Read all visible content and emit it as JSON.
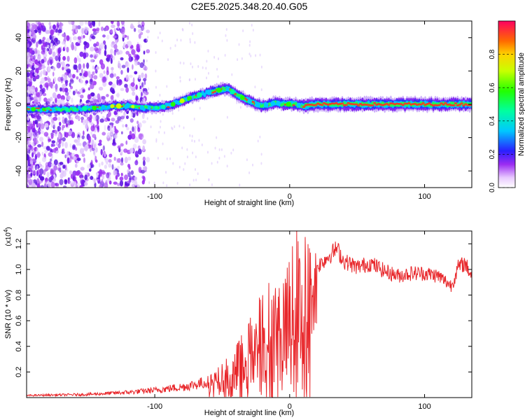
{
  "title": "C2E5.2025.348.20.40.G05",
  "colors": {
    "snr_line": "#e8262a",
    "background": "#ffffff",
    "axis": "#000000"
  },
  "chart_data": [
    {
      "type": "heatmap",
      "name": "spectrogram",
      "xlabel": "Height of straight line (km)",
      "ylabel": "Frequency (Hz)",
      "xlim": [
        -195,
        135
      ],
      "ylim": [
        -50,
        50
      ],
      "xticks": [
        -100,
        0,
        100
      ],
      "yticks": [
        -40,
        -20,
        0,
        20,
        40
      ],
      "ridge": {
        "x": [
          -195,
          -160,
          -140,
          -130,
          -120,
          -110,
          -100,
          -90,
          -80,
          -70,
          -60,
          -50,
          -45,
          -40,
          -35,
          -30,
          -25,
          -20,
          -15,
          -10,
          -5,
          0,
          5,
          10,
          20,
          50,
          100,
          135
        ],
        "freq": [
          -3,
          -3,
          -2,
          -1,
          -1,
          -2,
          -2,
          -1,
          2,
          5,
          7,
          9,
          9,
          6,
          4,
          2,
          0,
          -1,
          0,
          1,
          0,
          0,
          0,
          -1,
          0,
          0,
          0,
          0
        ]
      },
      "colorbar": {
        "label": "Normalized spectral amplitude",
        "range": [
          0,
          1
        ],
        "ticks": [
          0.0,
          0.2,
          0.4,
          0.6,
          0.8
        ],
        "tick_labels": [
          "0.0",
          "0.2",
          "0.4",
          "0.6",
          "0.8"
        ]
      }
    },
    {
      "type": "line",
      "name": "snr",
      "xlabel": "Height of straight line (km)",
      "ylabel": "SNR (10 * v/v)",
      "scale_label": "(x10",
      "scale_exp": "4",
      "scale_close": ")",
      "xlim": [
        -195,
        135
      ],
      "ylim": [
        0,
        1.3
      ],
      "xticks": [
        -100,
        0,
        100
      ],
      "yticks": [
        0.2,
        0.4,
        0.6,
        0.8,
        1.0,
        1.2
      ],
      "ytick_labels": [
        "0.2",
        "0.4",
        "0.6",
        "0.8",
        "1.0",
        "1.2"
      ],
      "envelope": {
        "x": [
          -195,
          -150,
          -120,
          -100,
          -80,
          -60,
          -50,
          -40,
          -30,
          -25,
          -20,
          -15,
          -10,
          -5,
          0,
          5,
          10,
          20,
          30,
          35,
          40,
          50,
          60,
          70,
          80,
          90,
          100,
          110,
          120,
          125,
          130,
          135
        ],
        "y": [
          0.02,
          0.03,
          0.05,
          0.07,
          0.1,
          0.15,
          0.2,
          0.3,
          0.45,
          0.55,
          0.6,
          0.7,
          0.75,
          0.8,
          0.85,
          0.9,
          0.95,
          1.05,
          1.15,
          1.2,
          1.1,
          1.05,
          1.08,
          1.02,
          0.98,
          1.0,
          1.0,
          0.98,
          0.9,
          1.05,
          1.08,
          0.98
        ],
        "noise_fraction": 0.35
      }
    }
  ]
}
